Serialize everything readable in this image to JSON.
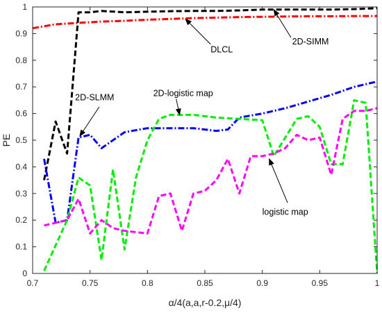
{
  "chart_data": {
    "type": "line",
    "xlabel": "α/4(a,a,r-0.2,μ/4)",
    "ylabel": "PE",
    "xlim": [
      0.7,
      1.0
    ],
    "ylim": [
      0,
      1
    ],
    "xticks": [
      "0.7",
      "0.75",
      "0.8",
      "0.85",
      "0.9",
      "0.95",
      "1"
    ],
    "yticks": [
      "0",
      "0.1",
      "0.2",
      "0.3",
      "0.4",
      "0.5",
      "0.6",
      "0.7",
      "0.8",
      "0.9",
      "1"
    ],
    "grid": false,
    "series": [
      {
        "name": "2D-SIMM",
        "color": "#ff0000",
        "dash": "dashdot",
        "x": [
          0.7,
          0.72,
          0.74,
          0.76,
          0.78,
          0.8,
          0.82,
          0.84,
          0.86,
          0.88,
          0.9,
          0.92,
          0.94,
          0.96,
          0.98,
          1.0
        ],
        "y": [
          0.92,
          0.935,
          0.94,
          0.945,
          0.948,
          0.952,
          0.955,
          0.958,
          0.96,
          0.962,
          0.963,
          0.964,
          0.965,
          0.965,
          0.966,
          0.966
        ]
      },
      {
        "name": "DLCL",
        "color": "#000000",
        "dash": "dash",
        "x": [
          0.71,
          0.72,
          0.73,
          0.74,
          0.75,
          0.76,
          0.78,
          0.8,
          0.82,
          0.84,
          0.86,
          0.88,
          0.9,
          0.92,
          0.94,
          0.96,
          0.98,
          1.0
        ],
        "y": [
          0.35,
          0.57,
          0.45,
          0.98,
          0.98,
          0.985,
          0.98,
          0.982,
          0.984,
          0.985,
          0.985,
          0.987,
          0.99,
          0.99,
          0.99,
          0.99,
          0.992,
          0.995
        ]
      },
      {
        "name": "2D-SLMM",
        "color": "#0000ff",
        "dash": "dashdot",
        "x": [
          0.71,
          0.72,
          0.73,
          0.74,
          0.75,
          0.76,
          0.77,
          0.78,
          0.8,
          0.82,
          0.84,
          0.86,
          0.87,
          0.88,
          0.9,
          0.92,
          0.94,
          0.96,
          0.98,
          1.0
        ],
        "y": [
          0.43,
          0.19,
          0.2,
          0.51,
          0.52,
          0.47,
          0.5,
          0.53,
          0.545,
          0.545,
          0.545,
          0.535,
          0.54,
          0.585,
          0.6,
          0.62,
          0.645,
          0.67,
          0.7,
          0.72
        ]
      },
      {
        "name": "2D-logistic map",
        "color": "#00ee00",
        "dash": "dash",
        "x": [
          0.71,
          0.73,
          0.74,
          0.75,
          0.76,
          0.77,
          0.78,
          0.79,
          0.8,
          0.81,
          0.82,
          0.84,
          0.86,
          0.88,
          0.9,
          0.91,
          0.93,
          0.94,
          0.95,
          0.96,
          0.97,
          0.98,
          0.99,
          1.0
        ],
        "y": [
          0.01,
          0.2,
          0.36,
          0.33,
          0.05,
          0.39,
          0.09,
          0.36,
          0.5,
          0.58,
          0.595,
          0.595,
          0.585,
          0.58,
          0.575,
          0.44,
          0.58,
          0.59,
          0.55,
          0.41,
          0.41,
          0.65,
          0.64,
          0.0
        ]
      },
      {
        "name": "logistic map",
        "color": "#ff00ff",
        "dash": "dash",
        "x": [
          0.71,
          0.73,
          0.74,
          0.75,
          0.76,
          0.77,
          0.78,
          0.8,
          0.81,
          0.82,
          0.83,
          0.84,
          0.85,
          0.86,
          0.87,
          0.88,
          0.89,
          0.9,
          0.91,
          0.92,
          0.93,
          0.94,
          0.95,
          0.96,
          0.97,
          0.98,
          0.99,
          1.0
        ],
        "y": [
          0.18,
          0.2,
          0.28,
          0.15,
          0.2,
          0.17,
          0.16,
          0.15,
          0.29,
          0.3,
          0.16,
          0.3,
          0.31,
          0.35,
          0.43,
          0.3,
          0.44,
          0.44,
          0.45,
          0.47,
          0.52,
          0.5,
          0.51,
          0.37,
          0.58,
          0.61,
          0.61,
          0.62
        ]
      }
    ],
    "annotations": [
      {
        "text": "DLCL",
        "label_x": 0.855,
        "label_y": 0.83,
        "arrow_from_x": 0.855,
        "arrow_from_y": 0.86,
        "arrow_to_x": 0.833,
        "arrow_to_y": 0.955
      },
      {
        "text": "2D-SIMM",
        "label_x": 0.926,
        "label_y": 0.86,
        "arrow_from_x": 0.925,
        "arrow_from_y": 0.885,
        "arrow_to_x": 0.91,
        "arrow_to_y": 0.99
      },
      {
        "text": "2D-SLMM",
        "label_x": 0.737,
        "label_y": 0.65,
        "arrow_from_x": 0.758,
        "arrow_from_y": 0.625,
        "arrow_to_x": 0.741,
        "arrow_to_y": 0.515
      },
      {
        "text": "2D-logistic map",
        "label_x": 0.805,
        "label_y": 0.665,
        "arrow_from_x": 0.825,
        "arrow_from_y": 0.655,
        "arrow_to_x": 0.828,
        "arrow_to_y": 0.595
      },
      {
        "text": "logistic map",
        "label_x": 0.9,
        "label_y": 0.22,
        "arrow_from_x": 0.922,
        "arrow_from_y": 0.265,
        "arrow_to_x": 0.906,
        "arrow_to_y": 0.43
      }
    ]
  }
}
